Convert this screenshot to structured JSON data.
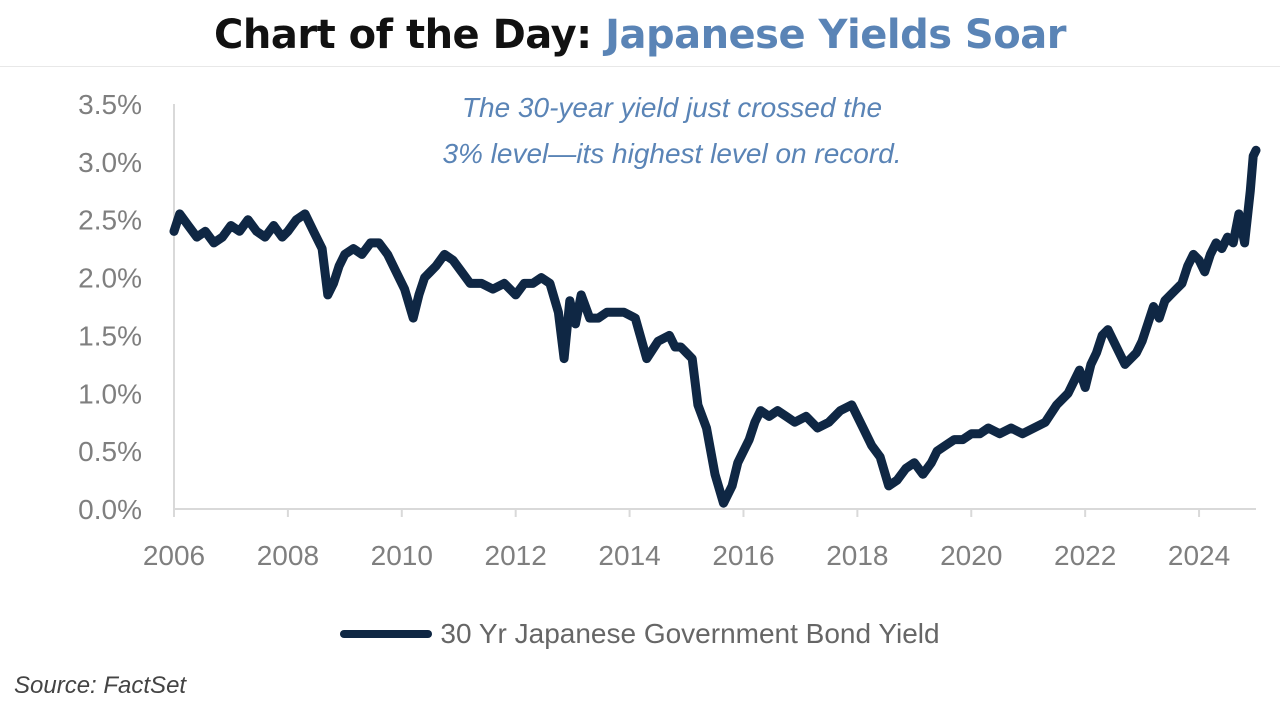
{
  "header": {
    "title_main": "Chart of the Day:",
    "title_accent": "Japanese Yields Soar"
  },
  "footer": {
    "source": "Source: FactSet"
  },
  "colors": {
    "series": "#0f2744",
    "accent": "#5a84b6",
    "axis_text": "#7f7f7f",
    "annotation": "#5a84b6"
  },
  "chart_data": {
    "type": "line",
    "title": "Chart of the Day: Japanese Yields Soar",
    "xlabel": "",
    "ylabel": "",
    "xlim": [
      2006,
      2025
    ],
    "ylim": [
      0,
      3.5
    ],
    "x_ticks": [
      "2006",
      "2008",
      "2010",
      "2012",
      "2014",
      "2016",
      "2018",
      "2020",
      "2022",
      "2024"
    ],
    "y_ticks": [
      "0.0%",
      "0.5%",
      "1.0%",
      "1.5%",
      "2.0%",
      "2.5%",
      "3.0%",
      "3.5%"
    ],
    "grid": false,
    "legend": "bottom-center",
    "annotation": [
      "The 30-year yield just crossed the",
      "3% level—its highest level on record."
    ],
    "series": [
      {
        "name": "30 Yr Japanese Government Bond Yield",
        "x": [
          2006.0,
          2006.1,
          2006.25,
          2006.4,
          2006.55,
          2006.7,
          2006.85,
          2007.0,
          2007.15,
          2007.3,
          2007.45,
          2007.6,
          2007.75,
          2007.9,
          2008.0,
          2008.15,
          2008.3,
          2008.45,
          2008.6,
          2008.7,
          2008.8,
          2008.9,
          2009.0,
          2009.15,
          2009.3,
          2009.45,
          2009.6,
          2009.75,
          2009.9,
          2010.05,
          2010.2,
          2010.3,
          2010.4,
          2010.5,
          2010.6,
          2010.75,
          2010.9,
          2011.05,
          2011.2,
          2011.4,
          2011.6,
          2011.8,
          2012.0,
          2012.15,
          2012.3,
          2012.45,
          2012.6,
          2012.75,
          2012.85,
          2012.95,
          2013.05,
          2013.15,
          2013.3,
          2013.45,
          2013.6,
          2013.75,
          2013.9,
          2014.1,
          2014.3,
          2014.5,
          2014.7,
          2014.8,
          2014.9,
          2015.0,
          2015.1,
          2015.2,
          2015.35,
          2015.5,
          2015.65,
          2015.8,
          2015.9,
          2016.0,
          2016.1,
          2016.2,
          2016.3,
          2016.45,
          2016.6,
          2016.75,
          2016.9,
          2017.1,
          2017.3,
          2017.5,
          2017.7,
          2017.9,
          2018.1,
          2018.25,
          2018.4,
          2018.55,
          2018.7,
          2018.85,
          2019.0,
          2019.15,
          2019.3,
          2019.4,
          2019.55,
          2019.7,
          2019.85,
          2020.0,
          2020.15,
          2020.3,
          2020.5,
          2020.7,
          2020.9,
          2021.1,
          2021.3,
          2021.5,
          2021.7,
          2021.9,
          2022.0,
          2022.1,
          2022.2,
          2022.3,
          2022.4,
          2022.5,
          2022.6,
          2022.7,
          2022.8,
          2022.9,
          2023.0,
          2023.1,
          2023.2,
          2023.3,
          2023.4,
          2023.5,
          2023.6,
          2023.7,
          2023.8,
          2023.9,
          2024.0,
          2024.1,
          2024.2,
          2024.3,
          2024.4,
          2024.5,
          2024.6,
          2024.7,
          2024.8,
          2024.9,
          2024.95,
          2025.0
        ],
        "values": [
          2.4,
          2.55,
          2.45,
          2.35,
          2.4,
          2.3,
          2.35,
          2.45,
          2.4,
          2.5,
          2.4,
          2.35,
          2.45,
          2.35,
          2.4,
          2.5,
          2.55,
          2.4,
          2.25,
          1.85,
          1.95,
          2.1,
          2.2,
          2.25,
          2.2,
          2.3,
          2.3,
          2.2,
          2.05,
          1.9,
          1.65,
          1.85,
          2.0,
          2.05,
          2.1,
          2.2,
          2.15,
          2.05,
          1.95,
          1.95,
          1.9,
          1.95,
          1.85,
          1.95,
          1.95,
          2.0,
          1.95,
          1.7,
          1.3,
          1.8,
          1.6,
          1.85,
          1.65,
          1.65,
          1.7,
          1.7,
          1.7,
          1.65,
          1.3,
          1.45,
          1.5,
          1.4,
          1.4,
          1.35,
          1.3,
          0.9,
          0.7,
          0.3,
          0.05,
          0.2,
          0.4,
          0.5,
          0.6,
          0.75,
          0.85,
          0.8,
          0.85,
          0.8,
          0.75,
          0.8,
          0.7,
          0.75,
          0.85,
          0.9,
          0.7,
          0.55,
          0.45,
          0.2,
          0.25,
          0.35,
          0.4,
          0.3,
          0.4,
          0.5,
          0.55,
          0.6,
          0.6,
          0.65,
          0.65,
          0.7,
          0.65,
          0.7,
          0.65,
          0.7,
          0.75,
          0.9,
          1.0,
          1.2,
          1.05,
          1.25,
          1.35,
          1.5,
          1.55,
          1.45,
          1.35,
          1.25,
          1.3,
          1.35,
          1.45,
          1.6,
          1.75,
          1.65,
          1.8,
          1.85,
          1.9,
          1.95,
          2.1,
          2.2,
          2.15,
          2.05,
          2.2,
          2.3,
          2.25,
          2.35,
          2.3,
          2.55,
          2.3,
          2.75,
          3.05,
          3.1
        ]
      }
    ]
  }
}
